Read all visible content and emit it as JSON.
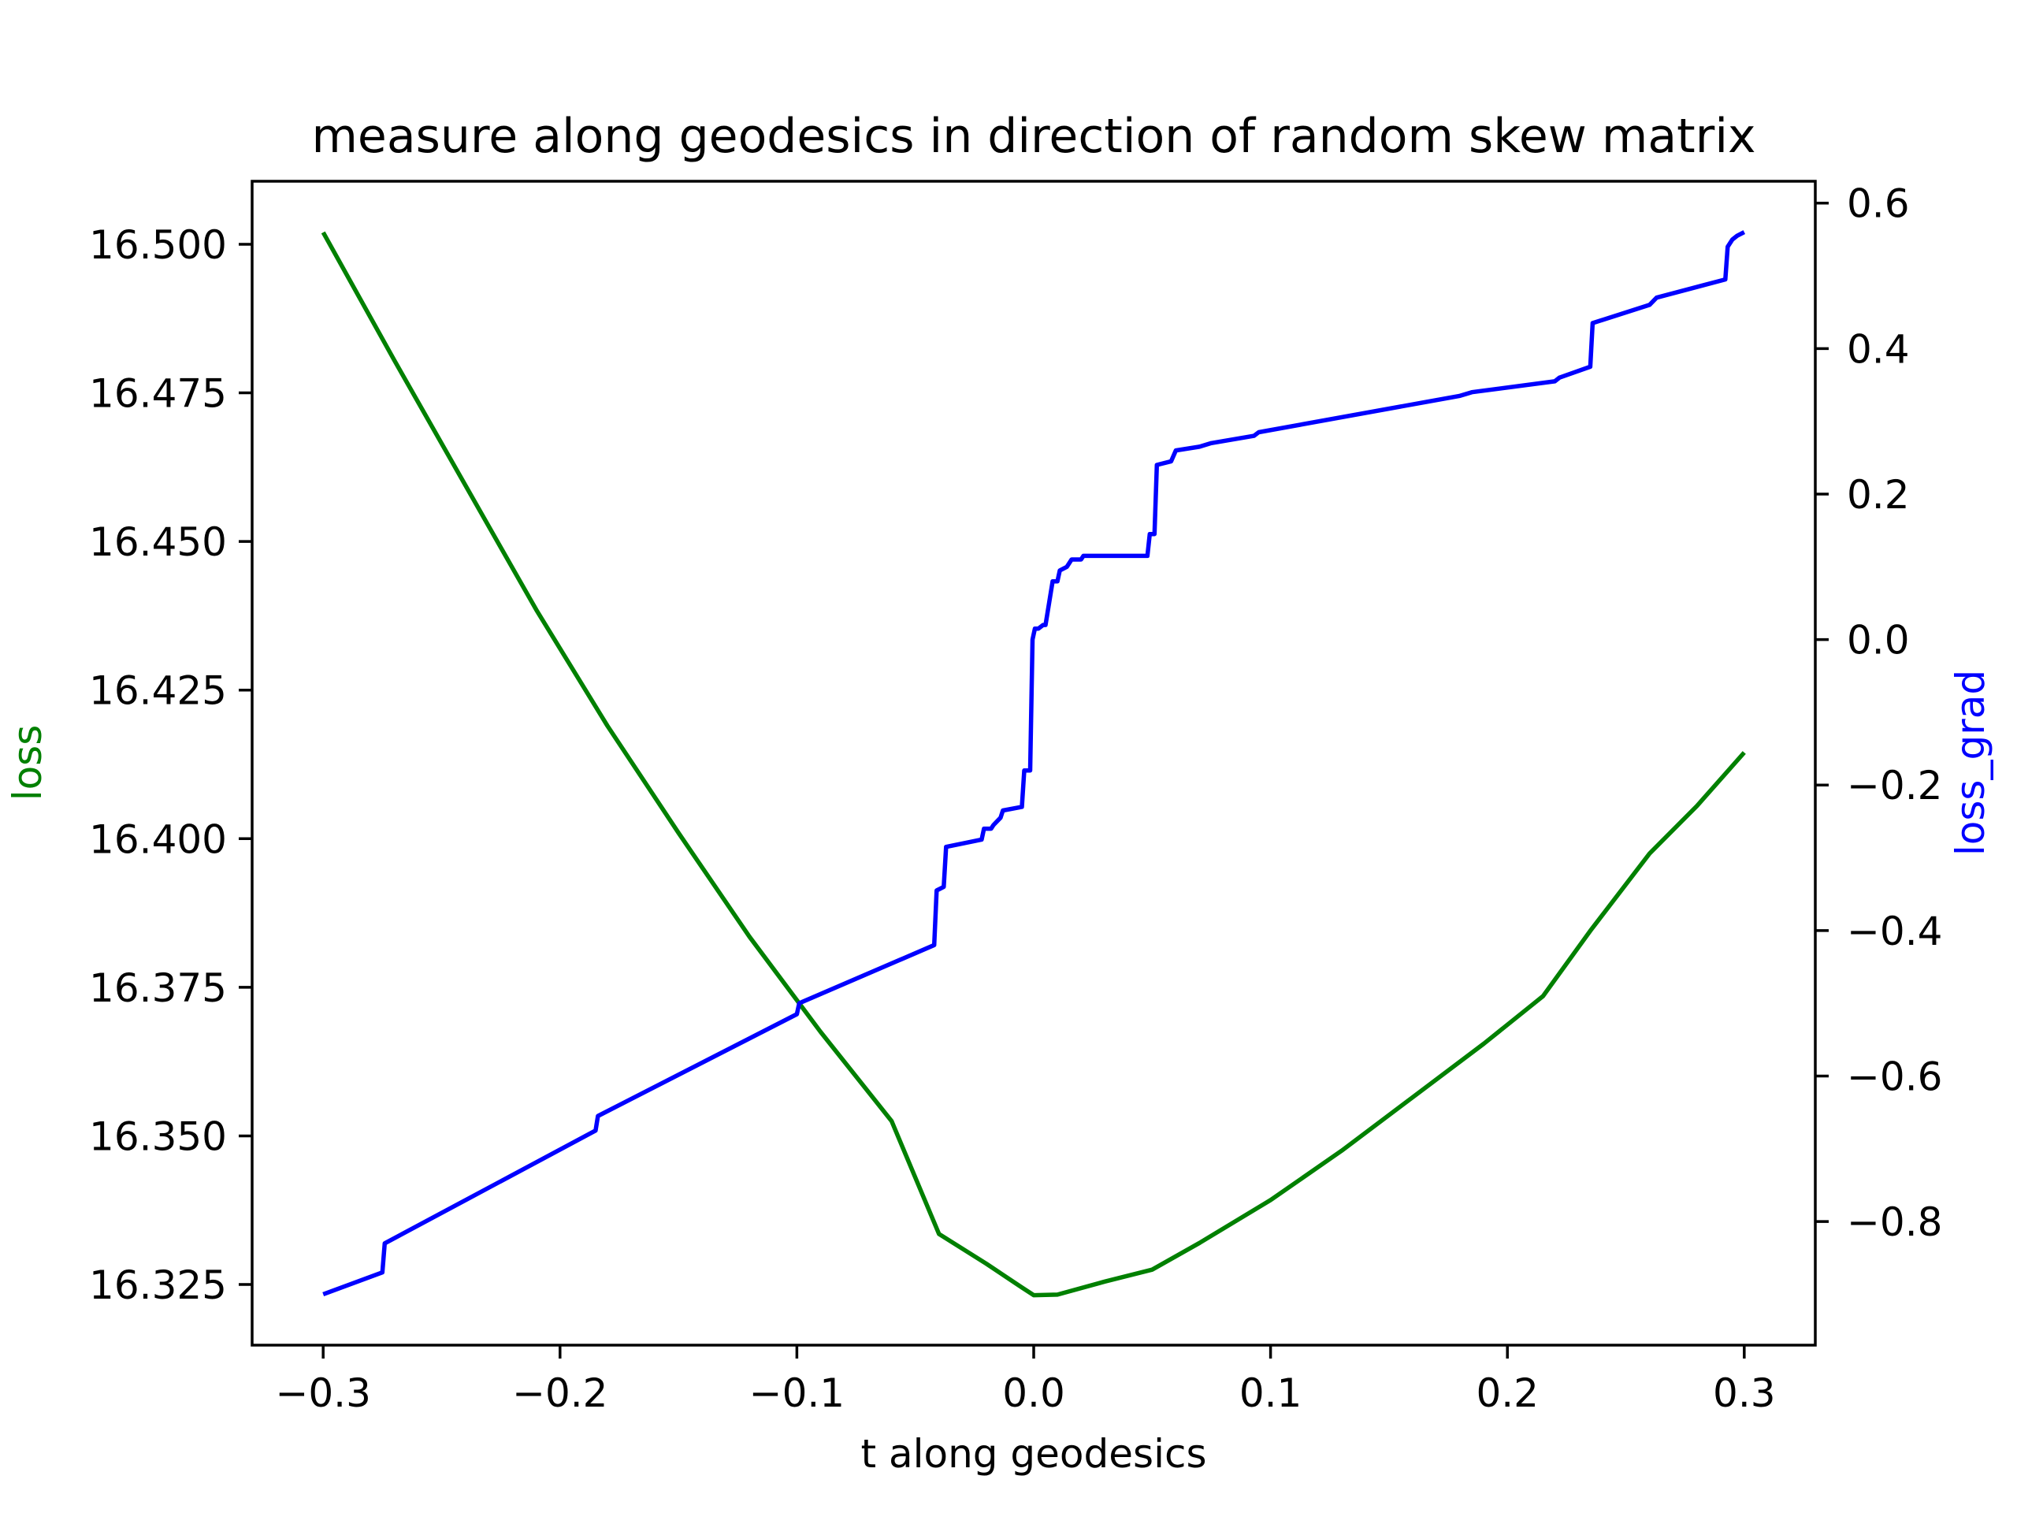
{
  "chart_data": {
    "type": "line",
    "title": "measure along geodesics in direction of random skew matrix",
    "xlabel": "t along geodesics",
    "ylabel_left": "loss",
    "ylabel_right": "loss_grad",
    "xlim": [
      -0.33,
      0.33
    ],
    "ylim_left": [
      16.3148,
      16.5106
    ],
    "ylim_right": [
      -0.97,
      0.63
    ],
    "xticks": [
      -0.3,
      -0.2,
      -0.1,
      0.0,
      0.1,
      0.2,
      0.3
    ],
    "xtick_labels": [
      "−0.3",
      "−0.2",
      "−0.1",
      "0.0",
      "0.1",
      "0.2",
      "0.3"
    ],
    "yticks_left": [
      16.325,
      16.35,
      16.375,
      16.4,
      16.425,
      16.45,
      16.475,
      16.5
    ],
    "ytick_labels_left": [
      "16.325",
      "16.350",
      "16.375",
      "16.400",
      "16.425",
      "16.450",
      "16.475",
      "16.500"
    ],
    "yticks_right": [
      -0.8,
      -0.6,
      -0.4,
      -0.2,
      0.0,
      0.2,
      0.4,
      0.6
    ],
    "ytick_labels_right": [
      "−0.8",
      "−0.6",
      "−0.4",
      "−0.2",
      "0.0",
      "0.2",
      "0.4",
      "0.6"
    ],
    "grid": false,
    "colors": {
      "loss": "#008000",
      "loss_grad": "#0000ff",
      "frame": "#000000"
    },
    "series": [
      {
        "axis": "left",
        "x": [
          -0.3,
          -0.27,
          -0.24,
          -0.21,
          -0.18,
          -0.15,
          -0.12,
          -0.09,
          -0.06,
          -0.04,
          -0.02,
          -0.005,
          0.0,
          0.01,
          0.03,
          0.05,
          0.07,
          0.1,
          0.13,
          0.16,
          0.19,
          0.215,
          0.235,
          0.26,
          0.28,
          0.3
        ],
        "values": [
          16.502,
          16.4805,
          16.4595,
          16.4385,
          16.419,
          16.401,
          16.3835,
          16.3675,
          16.3525,
          16.3335,
          16.3285,
          16.3245,
          16.3232,
          16.3233,
          16.3255,
          16.3275,
          16.332,
          16.3392,
          16.3475,
          16.3565,
          16.3655,
          16.3735,
          16.3845,
          16.3975,
          16.4055,
          16.4145
        ]
      },
      {
        "axis": "right",
        "x": [
          -0.3,
          -0.275,
          -0.274,
          -0.185,
          -0.184,
          -0.1,
          -0.099,
          -0.042,
          -0.041,
          -0.038,
          -0.037,
          -0.022,
          -0.021,
          -0.018,
          -0.017,
          -0.014,
          -0.013,
          -0.005,
          -0.004,
          -0.0015,
          -0.0005,
          0.0005,
          0.002,
          0.004,
          0.005,
          0.008,
          0.01,
          0.011,
          0.014,
          0.016,
          0.02,
          0.021,
          0.048,
          0.049,
          0.051,
          0.052,
          0.058,
          0.06,
          0.07,
          0.075,
          0.093,
          0.095,
          0.18,
          0.185,
          0.22,
          0.222,
          0.235,
          0.236,
          0.26,
          0.263,
          0.292,
          0.293,
          0.295,
          0.297,
          0.3
        ],
        "values": [
          -0.9,
          -0.87,
          -0.83,
          -0.675,
          -0.655,
          -0.515,
          -0.5,
          -0.42,
          -0.345,
          -0.34,
          -0.285,
          -0.275,
          -0.26,
          -0.26,
          -0.255,
          -0.245,
          -0.235,
          -0.23,
          -0.18,
          -0.18,
          0.0,
          0.015,
          0.015,
          0.02,
          0.02,
          0.08,
          0.08,
          0.095,
          0.1,
          0.11,
          0.11,
          0.115,
          0.115,
          0.145,
          0.145,
          0.24,
          0.245,
          0.26,
          0.265,
          0.27,
          0.28,
          0.285,
          0.335,
          0.34,
          0.355,
          0.36,
          0.375,
          0.435,
          0.46,
          0.47,
          0.495,
          0.54,
          0.55,
          0.555,
          0.56
        ]
      }
    ]
  }
}
